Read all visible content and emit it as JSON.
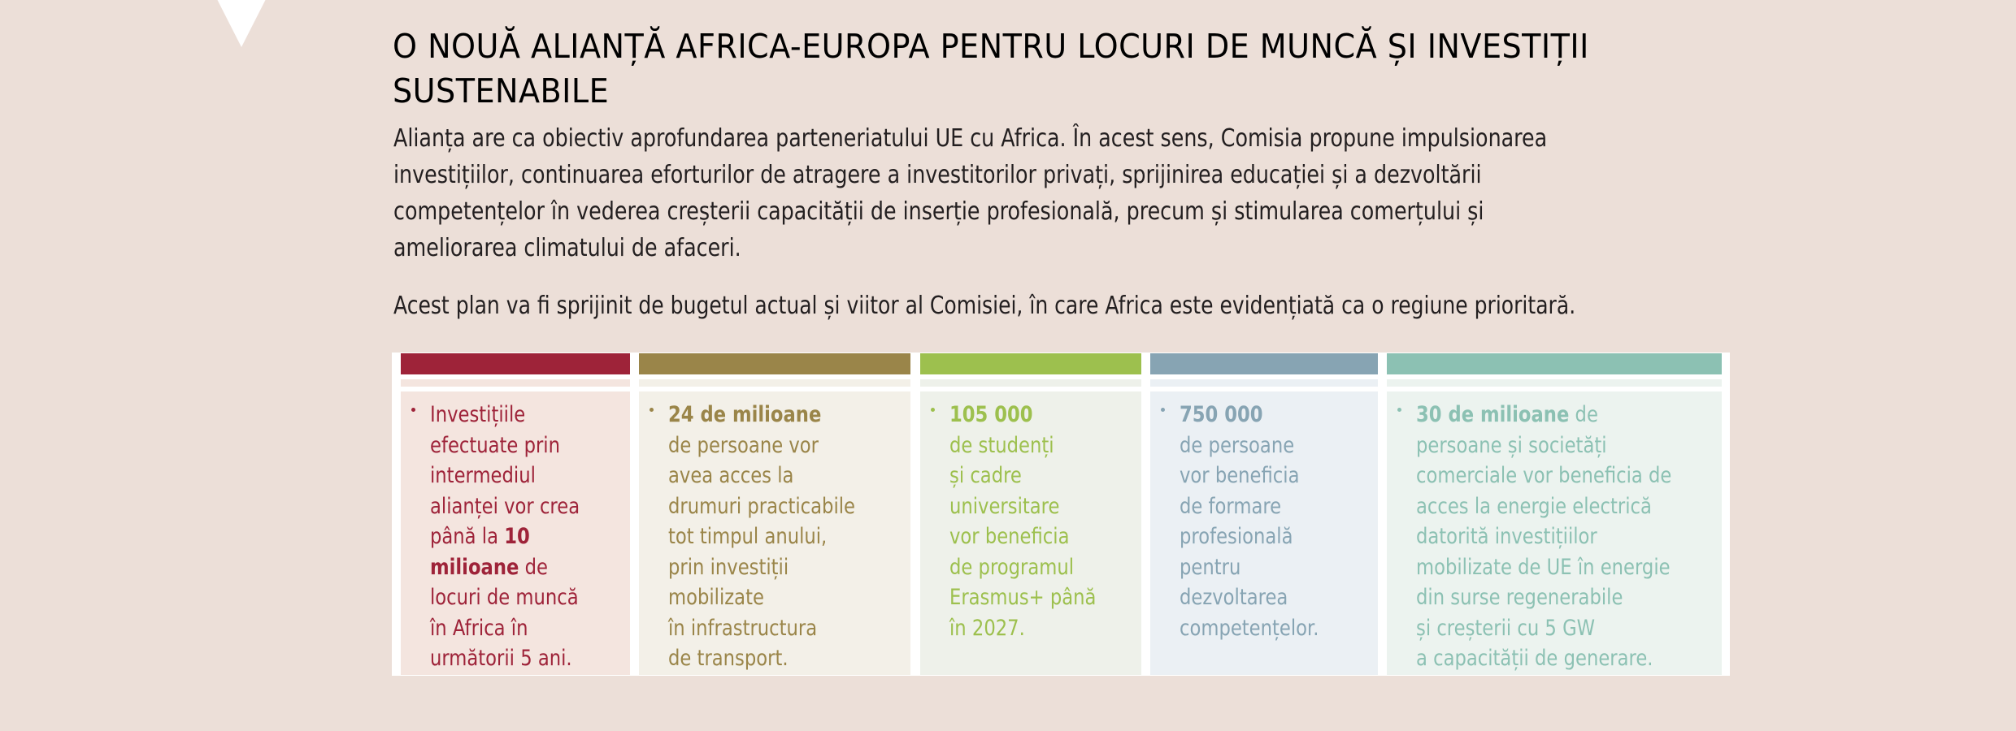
{
  "page": {
    "title_line1": "O NOUĂ ALIANȚĂ AFRICA-EUROPA PENTRU LOCURI DE MUNCĂ ȘI INVESTIȚII",
    "title_line2": "SUSTENABILE",
    "intro_lines": [
      "Alianța are ca obiectiv aprofundarea parteneriatului UE cu Africa. În acest sens, Comisia propune impulsionarea",
      "investițiilor, continuarea eforturilor de atragere a investitorilor privați, sprijinirea educației și a dezvoltării",
      "competențelor în vederea creșterii capacității de inserție profesională, precum și stimularea comerțului și",
      "ameliorarea climatului de afaceri."
    ],
    "intro2": "Acest plan va fi sprijinit de bugetul actual și viitor al Comisiei, în care Africa este evidențiată ca o regiune prioritară."
  },
  "colors": {
    "background": "#ecdfd8",
    "card1_accent": "#9e2339",
    "card2_accent": "#9a8549",
    "card3_accent": "#9dc04e",
    "card4_accent": "#87a4b3",
    "card5_accent": "#8cc1b3"
  },
  "cards": [
    {
      "accent": "#9e2339",
      "tint": "#f4e5df",
      "lines": [
        {
          "pre": "Investițiile",
          "bold": "",
          "post": ""
        },
        {
          "pre": "efectuate prin",
          "bold": "",
          "post": ""
        },
        {
          "pre": "intermediul",
          "bold": "",
          "post": ""
        },
        {
          "pre": "alianței vor crea",
          "bold": "",
          "post": ""
        },
        {
          "pre": "până la ",
          "bold": "10",
          "post": ""
        },
        {
          "pre": "",
          "bold": "milioane",
          "post": " de"
        },
        {
          "pre": "locuri de muncă",
          "bold": "",
          "post": ""
        },
        {
          "pre": "în Africa în",
          "bold": "",
          "post": ""
        },
        {
          "pre": "următorii 5 ani.",
          "bold": "",
          "post": ""
        }
      ]
    },
    {
      "accent": "#9a8549",
      "tint": "#f3f0e8",
      "lines": [
        {
          "pre": "",
          "bold": "24 de milioane",
          "post": ""
        },
        {
          "pre": "de persoane vor",
          "bold": "",
          "post": ""
        },
        {
          "pre": "avea acces la",
          "bold": "",
          "post": ""
        },
        {
          "pre": "drumuri practicabile",
          "bold": "",
          "post": ""
        },
        {
          "pre": "tot timpul anului,",
          "bold": "",
          "post": ""
        },
        {
          "pre": "prin investiții",
          "bold": "",
          "post": ""
        },
        {
          "pre": "mobilizate",
          "bold": "",
          "post": ""
        },
        {
          "pre": "în infrastructura",
          "bold": "",
          "post": ""
        },
        {
          "pre": "de transport.",
          "bold": "",
          "post": ""
        }
      ]
    },
    {
      "accent": "#9dc04e",
      "tint": "#eef1ea",
      "lines": [
        {
          "pre": "",
          "bold": "105 000",
          "post": ""
        },
        {
          "pre": "de studenți",
          "bold": "",
          "post": ""
        },
        {
          "pre": "și cadre",
          "bold": "",
          "post": ""
        },
        {
          "pre": "universitare",
          "bold": "",
          "post": ""
        },
        {
          "pre": "vor beneficia",
          "bold": "",
          "post": ""
        },
        {
          "pre": "de programul",
          "bold": "",
          "post": ""
        },
        {
          "pre": "Erasmus+ până",
          "bold": "",
          "post": ""
        },
        {
          "pre": "în 2027.",
          "bold": "",
          "post": ""
        }
      ]
    },
    {
      "accent": "#87a4b3",
      "tint": "#ebf0f4",
      "lines": [
        {
          "pre": "",
          "bold": "750 000",
          "post": ""
        },
        {
          "pre": "de persoane",
          "bold": "",
          "post": ""
        },
        {
          "pre": "vor beneficia",
          "bold": "",
          "post": ""
        },
        {
          "pre": "de formare",
          "bold": "",
          "post": ""
        },
        {
          "pre": "profesională",
          "bold": "",
          "post": ""
        },
        {
          "pre": "pentru",
          "bold": "",
          "post": ""
        },
        {
          "pre": "dezvoltarea",
          "bold": "",
          "post": ""
        },
        {
          "pre": "competențelor.",
          "bold": "",
          "post": ""
        }
      ]
    },
    {
      "accent": "#8cc1b3",
      "tint": "#ecf3ef",
      "lines": [
        {
          "pre": "",
          "bold": "30 de milioane",
          "post": " de"
        },
        {
          "pre": "persoane și societăți",
          "bold": "",
          "post": ""
        },
        {
          "pre": "comerciale vor beneficia de",
          "bold": "",
          "post": ""
        },
        {
          "pre": "acces la energie electrică",
          "bold": "",
          "post": ""
        },
        {
          "pre": "datorită investițiilor",
          "bold": "",
          "post": ""
        },
        {
          "pre": "mobilizate de UE în energie",
          "bold": "",
          "post": ""
        },
        {
          "pre": "din surse regenerabile",
          "bold": "",
          "post": ""
        },
        {
          "pre": "și creșterii cu 5 GW",
          "bold": "",
          "post": ""
        },
        {
          "pre": "a capacității de generare.",
          "bold": "",
          "post": ""
        }
      ]
    }
  ]
}
